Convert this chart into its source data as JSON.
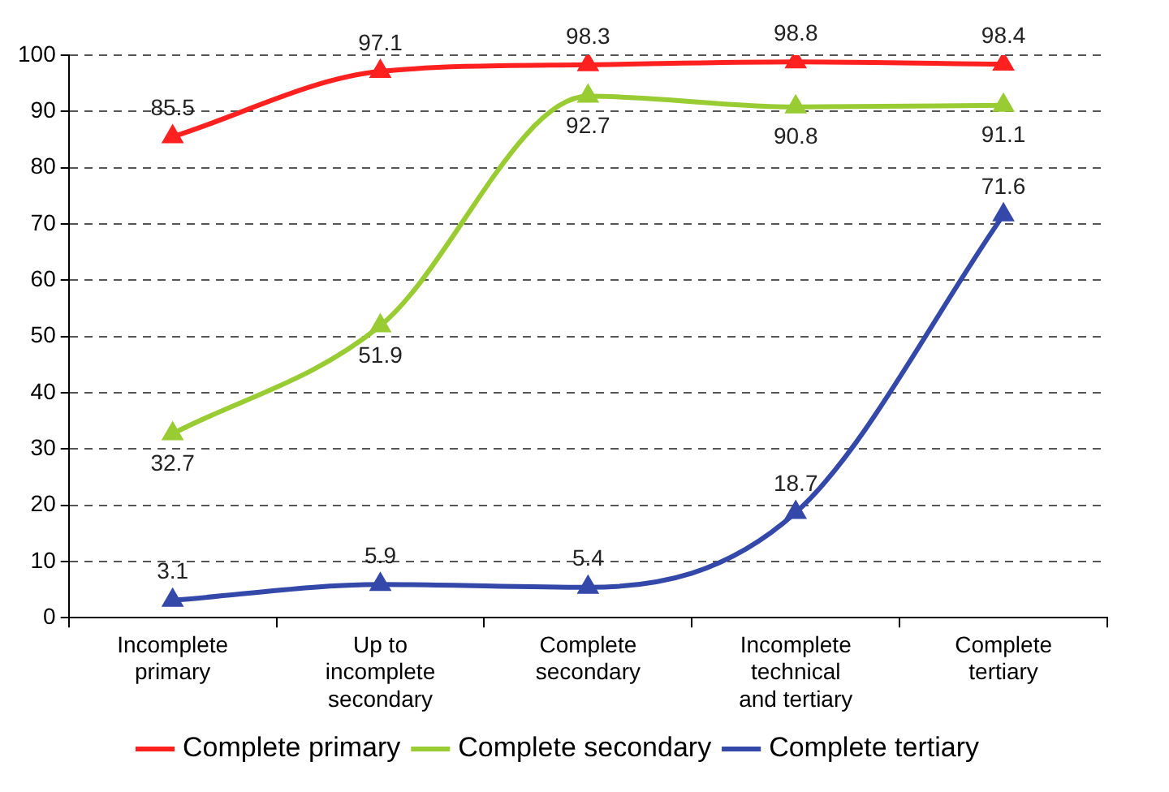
{
  "chart_data": {
    "type": "line",
    "categories": [
      "Incomplete primary",
      "Up to incomplete secondary",
      "Complete secondary",
      "Incomplete technical and tertiary",
      "Complete tertiary"
    ],
    "series": [
      {
        "name": "Complete primary",
        "color": "#ff2020",
        "values": [
          85.5,
          97.1,
          98.3,
          98.8,
          98.4
        ]
      },
      {
        "name": "Complete secondary",
        "color": "#99cc33",
        "values": [
          32.7,
          51.9,
          92.7,
          90.8,
          91.1
        ]
      },
      {
        "name": "Complete tertiary",
        "color": "#3348a8",
        "values": [
          3.1,
          5.9,
          5.4,
          18.7,
          71.6
        ]
      }
    ],
    "ylim": [
      0,
      100
    ],
    "yticks": [
      0,
      10,
      20,
      30,
      40,
      50,
      60,
      70,
      80,
      90,
      100
    ],
    "grid": "y",
    "legend": "bottom",
    "marker": "triangle",
    "line_style": "solid",
    "data_labels": true
  }
}
